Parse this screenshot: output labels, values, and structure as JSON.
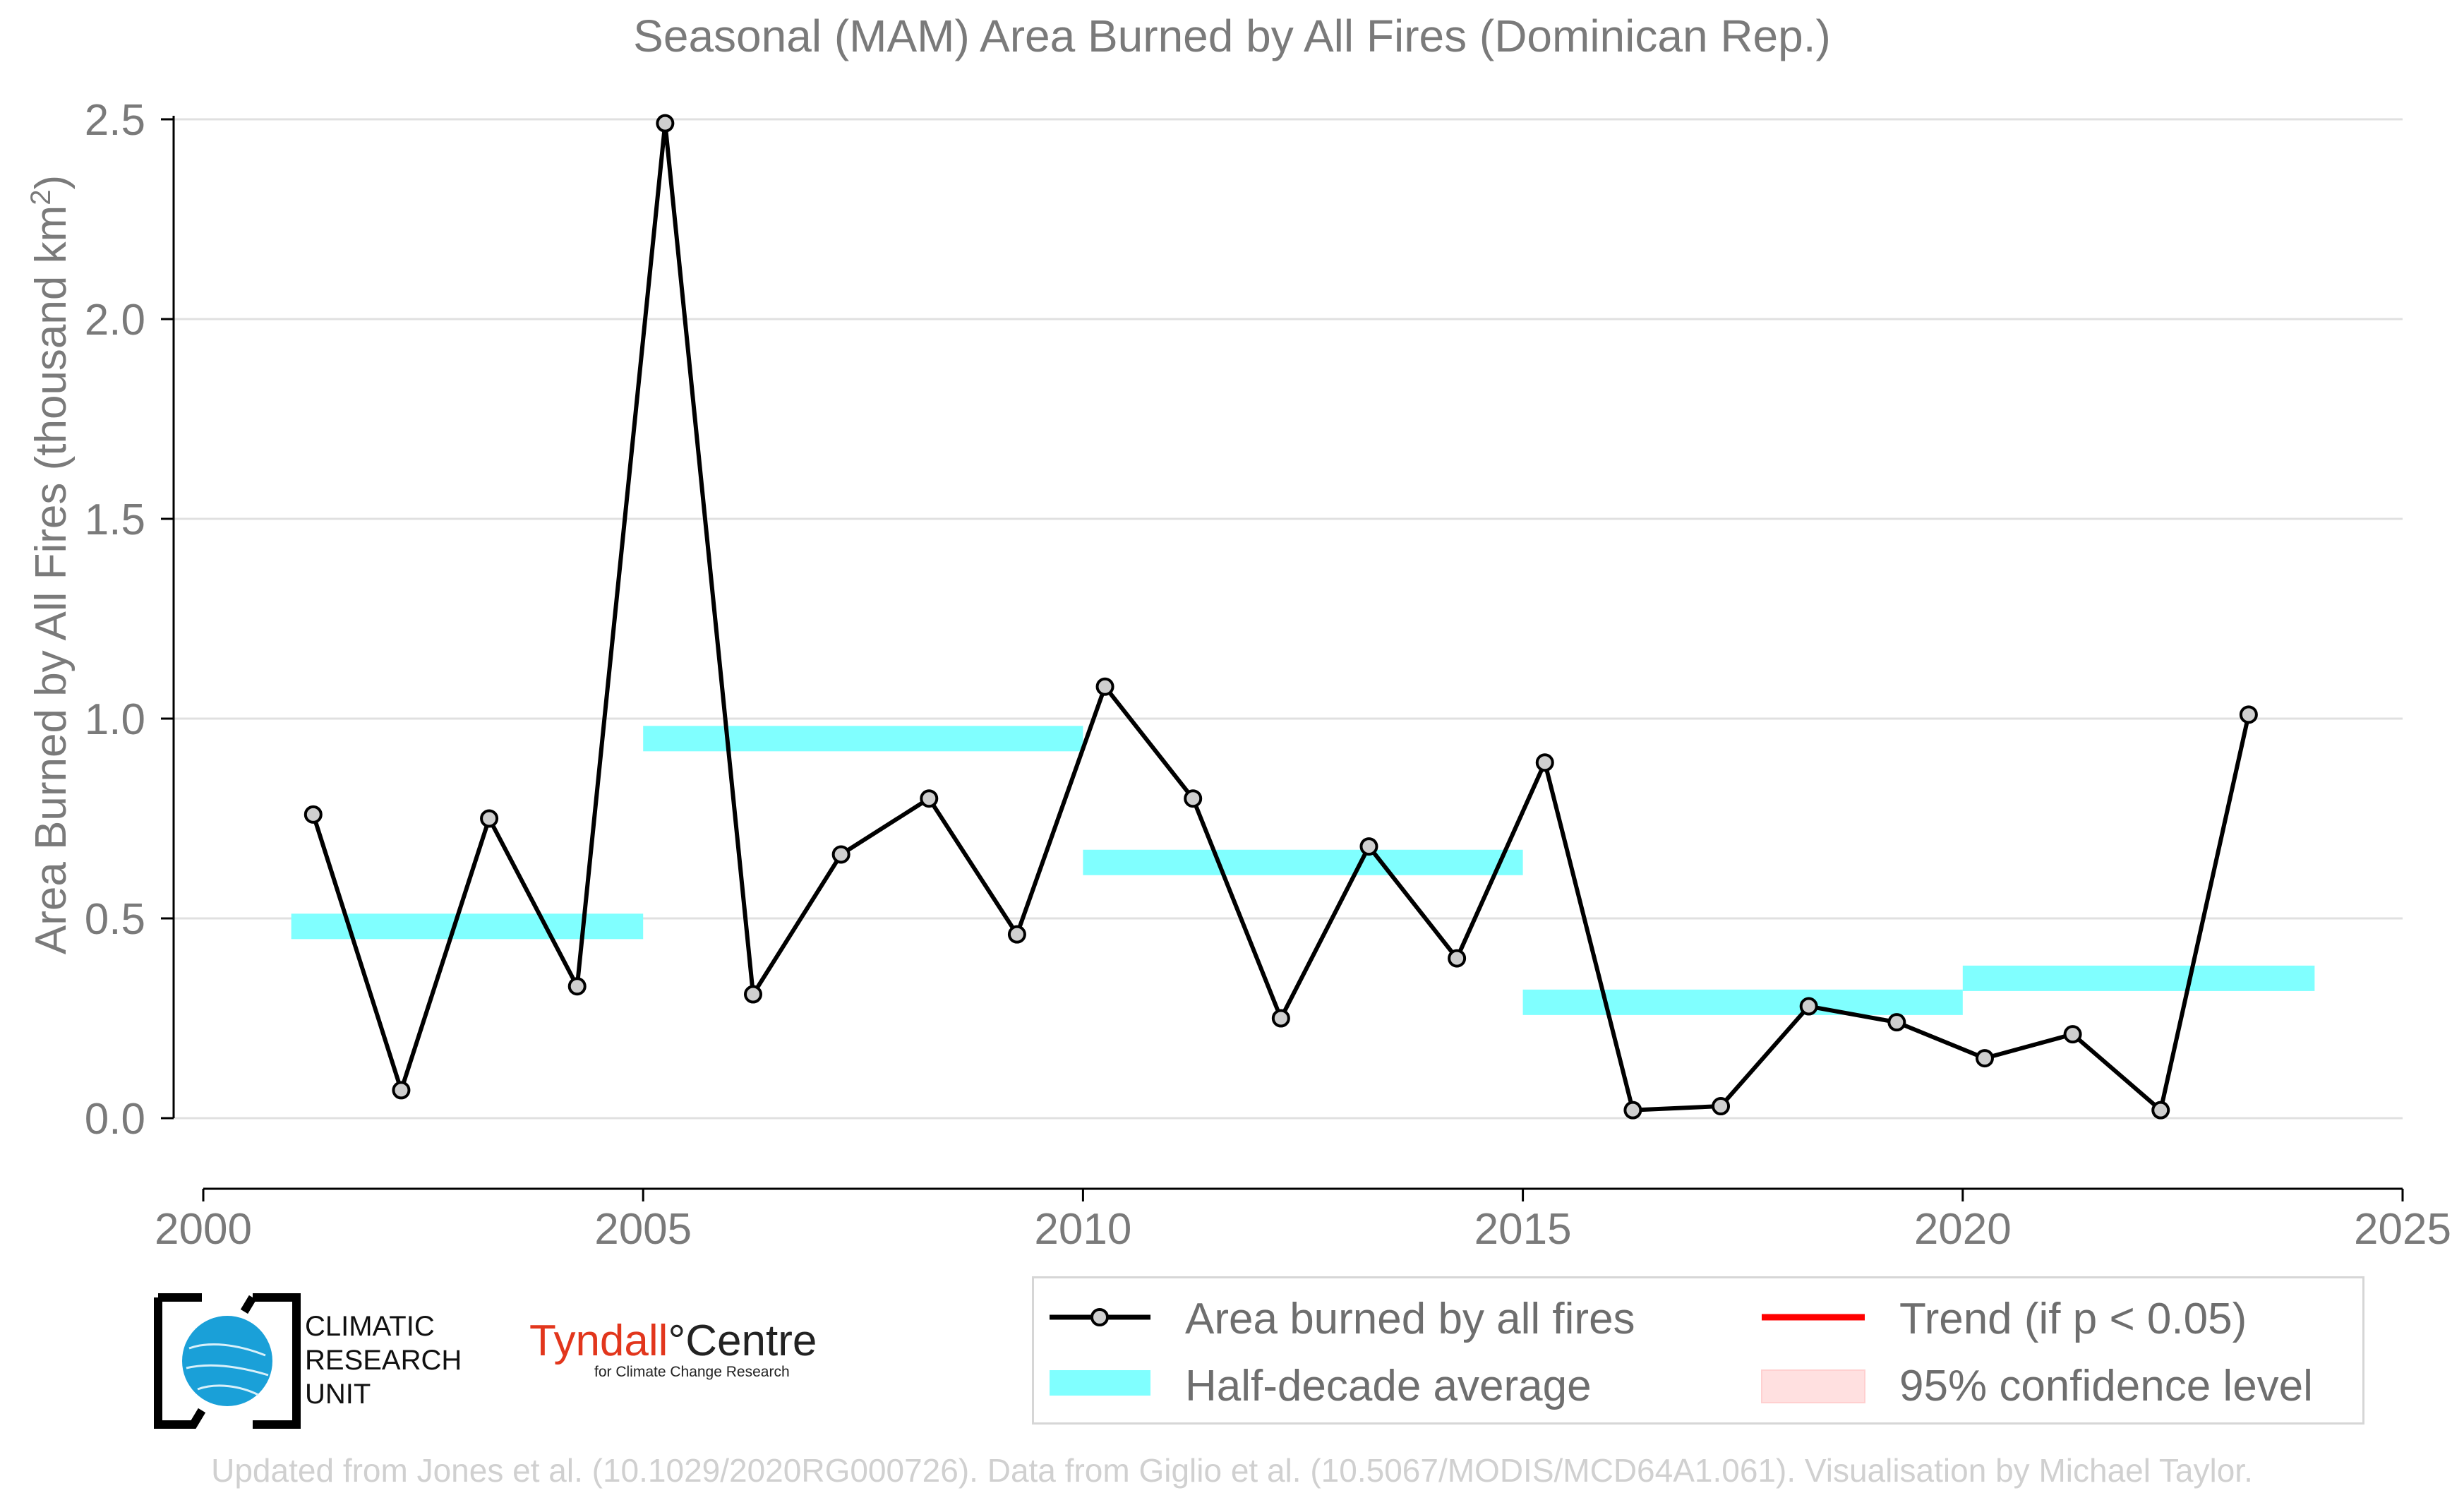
{
  "title": "Seasonal (MAM) Area Burned by All Fires (Dominican Rep.)",
  "ylabel_main": "Area Burned by All Fires (thousand km",
  "ylabel_sup": "2",
  "ylabel_end": ")",
  "colors": {
    "line": "#000000",
    "marker_fill": "#cfcfcf",
    "half_decade": "#80ffff",
    "trend": "#ff0000",
    "confidence": "#ffe0e0",
    "grid": "#e0e0e0",
    "text": "#7a7a7a"
  },
  "chart_data": {
    "type": "line",
    "title": "Seasonal (MAM) Area Burned by All Fires (Dominican Rep.)",
    "ylabel": "Area Burned by All Fires (thousand km²)",
    "xlim": [
      2000,
      2025
    ],
    "ylim": [
      -0.12,
      2.55
    ],
    "xticks": [
      "2000",
      "2005",
      "2010",
      "2015",
      "2020",
      "2025"
    ],
    "yticks": [
      "0.0",
      "0.5",
      "1.0",
      "1.5",
      "2.0",
      "2.5"
    ],
    "grid": "horizontal",
    "legend_position": "bottom-right",
    "series": [
      {
        "name": "Area burned by all fires",
        "x": [
          2001.25,
          2002.25,
          2003.25,
          2004.25,
          2005.25,
          2006.25,
          2007.25,
          2008.25,
          2009.25,
          2010.25,
          2011.25,
          2012.25,
          2013.25,
          2014.25,
          2015.25,
          2016.25,
          2017.25,
          2018.25,
          2019.25,
          2020.25,
          2021.25,
          2022.25,
          2023.25
        ],
        "values": [
          0.76,
          0.07,
          0.75,
          0.33,
          2.49,
          0.31,
          0.66,
          0.8,
          0.46,
          1.08,
          0.8,
          0.25,
          0.68,
          0.4,
          0.89,
          0.02,
          0.03,
          0.28,
          0.24,
          0.15,
          0.21,
          0.02,
          1.01
        ]
      },
      {
        "name": "Half-decade average",
        "segments": [
          {
            "x0": 2001,
            "x1": 2005,
            "value": 0.48
          },
          {
            "x0": 2005,
            "x1": 2010,
            "value": 0.95
          },
          {
            "x0": 2010,
            "x1": 2015,
            "value": 0.64
          },
          {
            "x0": 2015,
            "x1": 2020,
            "value": 0.29
          },
          {
            "x0": 2020,
            "x1": 2024,
            "value": 0.35
          }
        ]
      }
    ]
  },
  "legend": {
    "item1": "Area burned by all fires",
    "item2": "Half-decade average",
    "item3": "Trend (if p < 0.05)",
    "item4": "95% confidence level"
  },
  "logos": {
    "cru_line1": "CLIMATIC",
    "cru_line2": "RESEARCH",
    "cru_line3": "UNIT",
    "tyndall_a": "Tyndall",
    "tyndall_deg": "°",
    "tyndall_b": "Centre",
    "tyndall_sub": "for Climate Change Research"
  },
  "credit": "Updated from Jones et al. (10.1029/2020RG000726). Data from Giglio et al. (10.5067/MODIS/MCD64A1.061). Visualisation by Michael Taylor."
}
